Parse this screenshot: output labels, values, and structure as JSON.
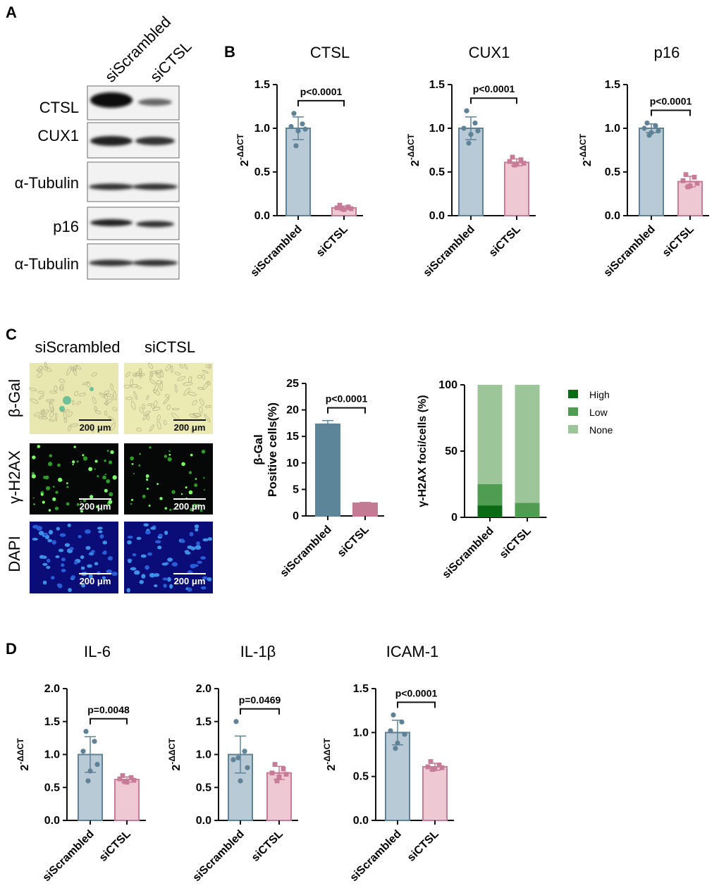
{
  "figure": {
    "panel_letters": [
      "A",
      "B",
      "C",
      "D"
    ]
  },
  "blot": {
    "lanes": [
      "siScrambled",
      "siCTSL"
    ],
    "rows": [
      "CTSL",
      "CUX1",
      "α-Tubulin",
      "p16",
      "α-Tubulin"
    ]
  },
  "microscopy": {
    "columns": [
      "siScrambled",
      "siCTSL"
    ],
    "rows": [
      "β-Gal",
      "γ-H2AX",
      "DAPI"
    ],
    "scale_bar": "200 μm"
  },
  "colors": {
    "siScrambled_fill": "#b8cad5",
    "siScrambled_edge": "#5f8297",
    "siCTSL_fill": "#eec8d3",
    "siCTSL_edge": "#c67c96",
    "bgal_siScrambled": "#5d8599",
    "bgal_siCTSL": "#c27b92",
    "high": "#0b6b14",
    "low": "#4f9d50",
    "none": "#9cc69a"
  },
  "chart_data": [
    {
      "id": "ctsl",
      "type": "bar",
      "title": "CTSL",
      "categories": [
        "siScrambled",
        "siCTSL"
      ],
      "ylabel": "2-ΔΔCT",
      "ylim": [
        0,
        1.5
      ],
      "yticks": [
        "0.0",
        "0.5",
        "1.0",
        "1.5"
      ],
      "values": [
        1.0,
        0.09
      ],
      "errors": [
        0.13,
        0.02
      ],
      "points": [
        [
          1.17,
          1.05,
          1.02,
          0.99,
          0.97,
          0.8
        ],
        [
          0.12,
          0.1,
          0.09,
          0.08,
          0.07,
          0.08
        ]
      ],
      "pvalue": "p<0.0001"
    },
    {
      "id": "cux1",
      "type": "bar",
      "title": "CUX1",
      "categories": [
        "siScrambled",
        "siCTSL"
      ],
      "ylabel": "2-ΔΔCT",
      "ylim": [
        0,
        1.5
      ],
      "yticks": [
        "0.0",
        "0.5",
        "1.0",
        "1.5"
      ],
      "values": [
        1.0,
        0.61
      ],
      "errors": [
        0.13,
        0.04
      ],
      "points": [
        [
          1.2,
          1.06,
          1.0,
          0.97,
          0.93,
          0.83
        ],
        [
          0.67,
          0.64,
          0.62,
          0.6,
          0.59,
          0.58
        ]
      ],
      "pvalue": "p<0.0001"
    },
    {
      "id": "p16",
      "type": "bar",
      "title": "p16",
      "categories": [
        "siScrambled",
        "siCTSL"
      ],
      "ylabel": "2-ΔΔCT",
      "ylim": [
        0,
        1.5
      ],
      "yticks": [
        "0.0",
        "0.5",
        "1.0",
        "1.5"
      ],
      "values": [
        1.0,
        0.39
      ],
      "errors": [
        0.05,
        0.06
      ],
      "points": [
        [
          1.06,
          1.03,
          1.0,
          0.97,
          0.95,
          0.92
        ],
        [
          0.47,
          0.44,
          0.4,
          0.37,
          0.34,
          0.33
        ]
      ],
      "pvalue": "p<0.0001"
    },
    {
      "id": "bgal",
      "type": "bar",
      "categories": [
        "siScrambled",
        "siCTSL"
      ],
      "ylabel": "β-Gal Positive cells(%)",
      "ylabel_lines": [
        "β-Gal",
        "Positive cells(%)"
      ],
      "ylim": [
        0,
        25
      ],
      "yticks": [
        "0",
        "5",
        "10",
        "15",
        "20",
        "25"
      ],
      "values": [
        17.3,
        2.4
      ],
      "errors": [
        0.7,
        0.15
      ],
      "pvalue": "p<0.0001"
    },
    {
      "id": "h2ax",
      "type": "bar",
      "stacked": true,
      "categories": [
        "siScrambled",
        "siCTSL"
      ],
      "ylabel": "γ-H2AX foci/cells (%)",
      "ylim": [
        0,
        100
      ],
      "yticks": [
        "0",
        "50",
        "100"
      ],
      "series": [
        {
          "name": "High",
          "values": [
            9,
            0
          ]
        },
        {
          "name": "Low",
          "values": [
            16,
            11
          ]
        },
        {
          "name": "None",
          "values": [
            75,
            89
          ]
        }
      ]
    },
    {
      "id": "il6",
      "type": "bar",
      "title": "IL-6",
      "categories": [
        "siScrambled",
        "siCTSL"
      ],
      "ylabel": "2-ΔΔCT",
      "ylim": [
        0,
        2.0
      ],
      "yticks": [
        "0.0",
        "0.5",
        "1.0",
        "1.5",
        "2.0"
      ],
      "values": [
        1.0,
        0.62
      ],
      "errors": [
        0.27,
        0.04
      ],
      "points": [
        [
          1.35,
          1.2,
          1.05,
          0.85,
          0.75,
          0.6
        ],
        [
          0.68,
          0.65,
          0.63,
          0.61,
          0.58,
          0.59
        ]
      ],
      "pvalue": "p=0.0048"
    },
    {
      "id": "il1b",
      "type": "bar",
      "title": "IL-1β",
      "categories": [
        "siScrambled",
        "siCTSL"
      ],
      "ylabel": "2-ΔΔCT",
      "ylim": [
        0,
        2.0
      ],
      "yticks": [
        "0.0",
        "0.5",
        "1.0",
        "1.5",
        "2.0"
      ],
      "values": [
        1.0,
        0.72
      ],
      "errors": [
        0.28,
        0.1
      ],
      "points": [
        [
          1.5,
          1.05,
          0.92,
          0.8,
          0.6,
          0.95
        ],
        [
          0.85,
          0.78,
          0.72,
          0.7,
          0.66,
          0.6
        ]
      ],
      "pvalue": "p=0.0469"
    },
    {
      "id": "icam1",
      "type": "bar",
      "title": "ICAM-1",
      "categories": [
        "siScrambled",
        "siCTSL"
      ],
      "ylabel": "2-ΔΔCT",
      "ylim": [
        0,
        1.5
      ],
      "yticks": [
        "0.0",
        "0.5",
        "1.0",
        "1.5"
      ],
      "values": [
        1.0,
        0.61
      ],
      "errors": [
        0.14,
        0.04
      ],
      "points": [
        [
          1.2,
          1.12,
          1.02,
          0.98,
          0.88,
          0.82
        ],
        [
          0.67,
          0.63,
          0.61,
          0.6,
          0.59,
          0.58
        ]
      ],
      "pvalue": "p<0.0001"
    }
  ]
}
